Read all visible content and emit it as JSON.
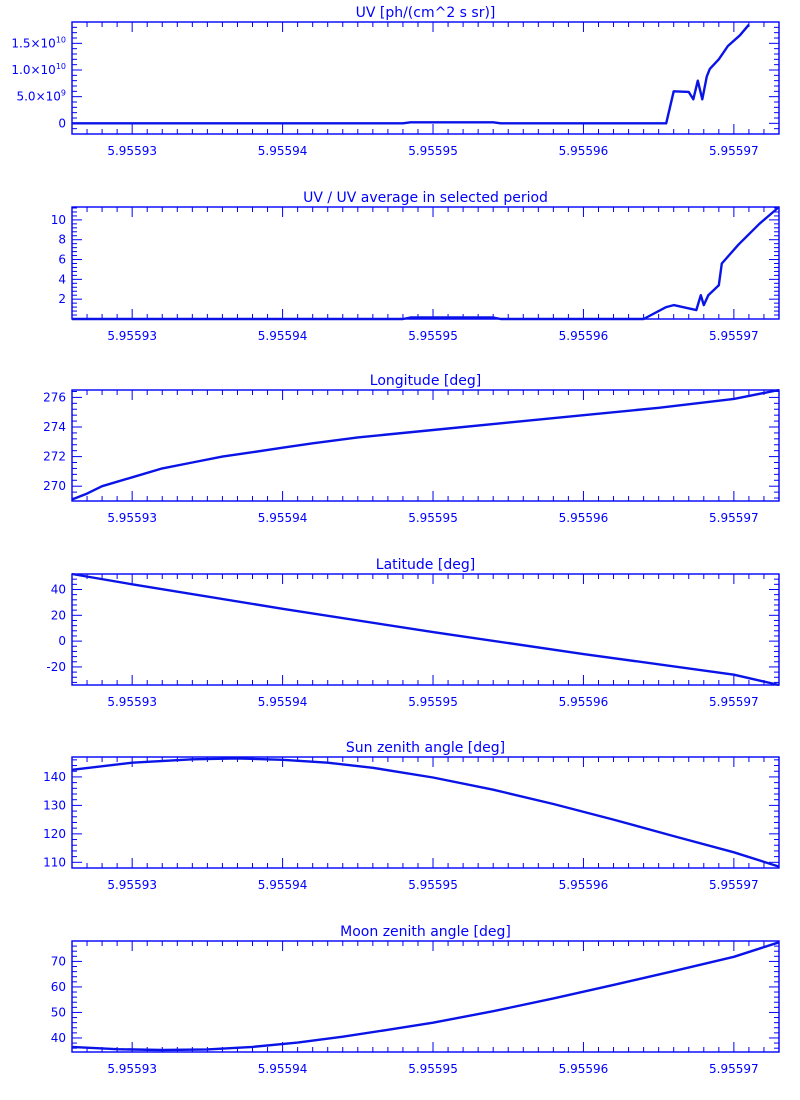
{
  "colors": {
    "axis": "#0000ff",
    "line": "#0a14e6",
    "background": "#ffffff"
  },
  "chart_data": [
    {
      "type": "line",
      "title": "UV [ph/(cm^2 s sr)]",
      "xlabel": "",
      "ylabel": "",
      "xlim": [
        5.955926,
        5.955973
      ],
      "ylim": [
        -2000000000.0,
        19000000000.0
      ],
      "xticks": [
        5.95593,
        5.95594,
        5.95595,
        5.95596,
        5.95597
      ],
      "xtick_labels": [
        "5.95593",
        "5.95594",
        "5.95595",
        "5.95596",
        "5.95597"
      ],
      "yticks": [
        0,
        5000000000.0,
        10000000000.0,
        15000000000.0
      ],
      "ytick_labels": [
        "0",
        "5.0×10⁹",
        "1.0×10¹⁰",
        "1.5×10¹⁰"
      ],
      "series": [
        {
          "x": [
            5.955926,
            5.955948,
            5.9559485,
            5.955954,
            5.9559545,
            5.955964,
            5.9559655,
            5.955966,
            5.955967,
            5.9559673,
            5.9559676,
            5.9559679,
            5.9559682,
            5.9559684,
            5.955969,
            5.9559696,
            5.9559704,
            5.955971
          ],
          "y": [
            0,
            0,
            200000000.0,
            200000000.0,
            0,
            0,
            0,
            6000000000.0,
            5900000000.0,
            4500000000.0,
            8000000000.0,
            4500000000.0,
            8800000000.0,
            10200000000.0,
            12000000000.0,
            14500000000.0,
            16500000000.0,
            18500000000.0
          ]
        }
      ]
    },
    {
      "type": "line",
      "title": "UV / UV average in selected period",
      "xlabel": "",
      "ylabel": "",
      "xlim": [
        5.955926,
        5.955973
      ],
      "ylim": [
        0,
        11.3
      ],
      "xticks": [
        5.95593,
        5.95594,
        5.95595,
        5.95596,
        5.95597
      ],
      "xtick_labels": [
        "5.95593",
        "5.95594",
        "5.95595",
        "5.95596",
        "5.95597"
      ],
      "yticks": [
        2,
        4,
        6,
        8,
        10
      ],
      "ytick_labels": [
        "2",
        "4",
        "6",
        "8",
        "10"
      ],
      "series": [
        {
          "x": [
            5.955926,
            5.955948,
            5.9559485,
            5.955954,
            5.9559545,
            5.955964,
            5.9559655,
            5.955966,
            5.9559675,
            5.9559678,
            5.955968,
            5.9559683,
            5.955969,
            5.9559692,
            5.9559703,
            5.9559717,
            5.9559735
          ],
          "y": [
            0,
            0,
            0.15,
            0.15,
            0,
            0,
            1.2,
            1.4,
            0.9,
            2.4,
            1.4,
            2.4,
            3.4,
            5.6,
            7.5,
            9.6,
            11.3
          ]
        }
      ]
    },
    {
      "type": "line",
      "title": "Longitude [deg]",
      "xlabel": "",
      "ylabel": "",
      "xlim": [
        5.955926,
        5.955973
      ],
      "ylim": [
        269.0,
        276.5
      ],
      "xticks": [
        5.95593,
        5.95594,
        5.95595,
        5.95596,
        5.95597
      ],
      "xtick_labels": [
        "5.95593",
        "5.95594",
        "5.95595",
        "5.95596",
        "5.95597"
      ],
      "yticks": [
        270,
        272,
        274,
        276
      ],
      "ytick_labels": [
        "270",
        "272",
        "274",
        "276"
      ],
      "series": [
        {
          "x": [
            5.955926,
            5.955927,
            5.955928,
            5.95593,
            5.955932,
            5.955934,
            5.955936,
            5.955938,
            5.95594,
            5.955942,
            5.955945,
            5.95595,
            5.955955,
            5.95596,
            5.955965,
            5.95597,
            5.955973
          ],
          "y": [
            269.1,
            269.5,
            270.0,
            270.6,
            271.2,
            271.6,
            272.0,
            272.3,
            272.6,
            272.9,
            273.3,
            273.8,
            274.3,
            274.8,
            275.3,
            275.9,
            276.5
          ]
        }
      ]
    },
    {
      "type": "line",
      "title": "Latitude [deg]",
      "xlabel": "",
      "ylabel": "",
      "xlim": [
        5.955926,
        5.955973
      ],
      "ylim": [
        -34,
        52
      ],
      "xticks": [
        5.95593,
        5.95594,
        5.95595,
        5.95596,
        5.95597
      ],
      "xtick_labels": [
        "5.95593",
        "5.95594",
        "5.95595",
        "5.95596",
        "5.95597"
      ],
      "yticks": [
        -20,
        0,
        20,
        40
      ],
      "ytick_labels": [
        "-20",
        "0",
        "20",
        "40"
      ],
      "series": [
        {
          "x": [
            5.955926,
            5.95593,
            5.95594,
            5.95595,
            5.95596,
            5.95597,
            5.955973
          ],
          "y": [
            52,
            44,
            25,
            7,
            -10,
            -26,
            -34
          ]
        }
      ]
    },
    {
      "type": "line",
      "title": "Sun zenith angle [deg]",
      "xlabel": "",
      "ylabel": "",
      "xlim": [
        5.955926,
        5.955973
      ],
      "ylim": [
        108,
        147
      ],
      "xticks": [
        5.95593,
        5.95594,
        5.95595,
        5.95596,
        5.95597
      ],
      "xtick_labels": [
        "5.95593",
        "5.95594",
        "5.95595",
        "5.95596",
        "5.95597"
      ],
      "yticks": [
        110,
        120,
        130,
        140
      ],
      "ytick_labels": [
        "110",
        "120",
        "130",
        "140"
      ],
      "series": [
        {
          "x": [
            5.955926,
            5.95593,
            5.955934,
            5.955937,
            5.95594,
            5.955943,
            5.955946,
            5.95595,
            5.955954,
            5.955958,
            5.955962,
            5.955966,
            5.95597,
            5.955973
          ],
          "y": [
            142.5,
            145.0,
            146.2,
            146.5,
            146.0,
            145.0,
            143.2,
            139.8,
            135.5,
            130.5,
            125.0,
            119.2,
            113.5,
            108.5
          ]
        }
      ]
    },
    {
      "type": "line",
      "title": "Moon zenith angle [deg]",
      "xlabel": "",
      "ylabel": "",
      "xlim": [
        5.955926,
        5.955973
      ],
      "ylim": [
        34.5,
        78
      ],
      "xticks": [
        5.95593,
        5.95594,
        5.95595,
        5.95596,
        5.95597
      ],
      "xtick_labels": [
        "5.95593",
        "5.95594",
        "5.95595",
        "5.95596",
        "5.95597"
      ],
      "yticks": [
        40,
        50,
        60,
        70
      ],
      "ytick_labels": [
        "40",
        "50",
        "60",
        "70"
      ],
      "series": [
        {
          "x": [
            5.955926,
            5.955929,
            5.955932,
            5.955935,
            5.955938,
            5.955941,
            5.955944,
            5.955947,
            5.95595,
            5.955954,
            5.955958,
            5.955962,
            5.955966,
            5.95597,
            5.955973
          ],
          "y": [
            36.5,
            35.6,
            35.3,
            35.5,
            36.5,
            38.2,
            40.5,
            43.2,
            46.0,
            50.5,
            55.5,
            60.8,
            66.2,
            71.8,
            77.5
          ]
        }
      ]
    }
  ]
}
